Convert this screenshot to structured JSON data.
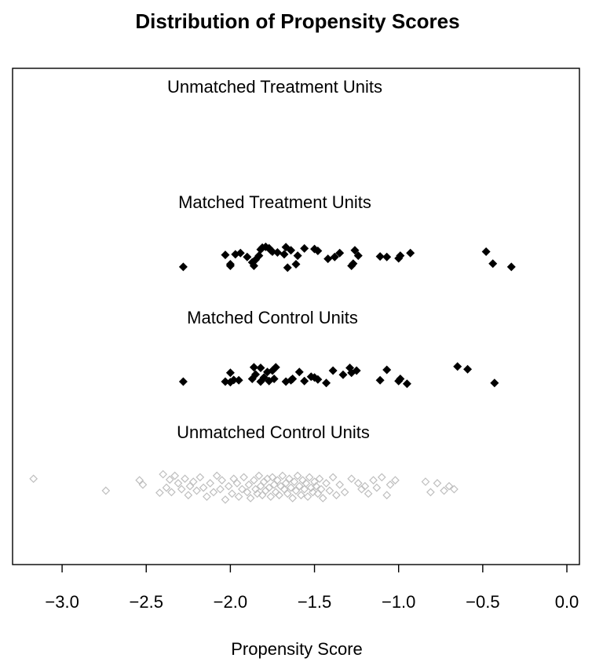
{
  "chart_data": {
    "type": "scatter",
    "title": "Distribution of Propensity Scores",
    "xlabel": "Propensity Score",
    "ylabel": "",
    "xlim": [
      -3.3,
      0.05
    ],
    "x_ticks": [
      -3.0,
      -2.5,
      -2.0,
      -1.5,
      -1.0,
      -0.5,
      0.0
    ],
    "x_tick_labels": [
      "−3.0",
      "−2.5",
      "−2.0",
      "−1.5",
      "−1.0",
      "−0.5",
      "0.0"
    ],
    "grid": false,
    "legend": "none",
    "groups": [
      {
        "name": "Unmatched Treatment Units",
        "marker": "filled-diamond",
        "color": "#000000",
        "points": []
      },
      {
        "name": "Matched Treatment Units",
        "marker": "filled-diamond",
        "color": "#000000",
        "points": [
          [
            -2.28,
            0.18
          ],
          [
            -2.03,
            0.63
          ],
          [
            -2.0,
            0.28
          ],
          [
            -2.0,
            0.22
          ],
          [
            -1.97,
            0.65
          ],
          [
            -1.94,
            0.7
          ],
          [
            -1.9,
            0.55
          ],
          [
            -1.87,
            0.35
          ],
          [
            -1.86,
            0.22
          ],
          [
            -1.85,
            0.45
          ],
          [
            -1.83,
            0.6
          ],
          [
            -1.82,
            0.83
          ],
          [
            -1.81,
            0.9
          ],
          [
            -1.79,
            0.93
          ],
          [
            -1.77,
            0.88
          ],
          [
            -1.76,
            0.8
          ],
          [
            -1.75,
            0.75
          ],
          [
            -1.72,
            0.72
          ],
          [
            -1.68,
            0.65
          ],
          [
            -1.67,
            0.92
          ],
          [
            -1.66,
            0.15
          ],
          [
            -1.64,
            0.8
          ],
          [
            -1.61,
            0.28
          ],
          [
            -1.6,
            0.6
          ],
          [
            -1.56,
            0.87
          ],
          [
            -1.5,
            0.85
          ],
          [
            -1.48,
            0.78
          ],
          [
            -1.42,
            0.48
          ],
          [
            -1.38,
            0.55
          ],
          [
            -1.35,
            0.7
          ],
          [
            -1.28,
            0.22
          ],
          [
            -1.27,
            0.3
          ],
          [
            -1.26,
            0.8
          ],
          [
            -1.24,
            0.6
          ],
          [
            -1.11,
            0.57
          ],
          [
            -1.07,
            0.55
          ],
          [
            -1.0,
            0.5
          ],
          [
            -0.99,
            0.6
          ],
          [
            -0.93,
            0.7
          ],
          [
            -0.48,
            0.75
          ],
          [
            -0.44,
            0.3
          ],
          [
            -0.33,
            0.18
          ]
        ]
      },
      {
        "name": "Matched Control Units",
        "marker": "filled-diamond",
        "color": "#000000",
        "points": [
          [
            -2.28,
            0.2
          ],
          [
            -2.03,
            0.2
          ],
          [
            -2.0,
            0.52
          ],
          [
            -2.0,
            0.18
          ],
          [
            -1.98,
            0.26
          ],
          [
            -1.95,
            0.25
          ],
          [
            -1.87,
            0.3
          ],
          [
            -1.86,
            0.72
          ],
          [
            -1.85,
            0.46
          ],
          [
            -1.82,
            0.7
          ],
          [
            -1.82,
            0.2
          ],
          [
            -1.8,
            0.35
          ],
          [
            -1.78,
            0.55
          ],
          [
            -1.77,
            0.22
          ],
          [
            -1.75,
            0.6
          ],
          [
            -1.74,
            0.3
          ],
          [
            -1.73,
            0.72
          ],
          [
            -1.67,
            0.2
          ],
          [
            -1.64,
            0.25
          ],
          [
            -1.63,
            0.3
          ],
          [
            -1.59,
            0.55
          ],
          [
            -1.56,
            0.22
          ],
          [
            -1.52,
            0.38
          ],
          [
            -1.5,
            0.35
          ],
          [
            -1.48,
            0.28
          ],
          [
            -1.43,
            0.15
          ],
          [
            -1.39,
            0.6
          ],
          [
            -1.33,
            0.45
          ],
          [
            -1.29,
            0.7
          ],
          [
            -1.28,
            0.52
          ],
          [
            -1.25,
            0.6
          ],
          [
            -1.11,
            0.25
          ],
          [
            -1.07,
            0.63
          ],
          [
            -1.0,
            0.22
          ],
          [
            -0.99,
            0.3
          ],
          [
            -0.95,
            0.12
          ],
          [
            -0.65,
            0.75
          ],
          [
            -0.59,
            0.65
          ],
          [
            -0.43,
            0.15
          ]
        ]
      },
      {
        "name": "Unmatched Control Units",
        "marker": "open-diamond",
        "color": "#bebebe",
        "points": [
          [
            -3.17,
            0.85
          ],
          [
            -2.74,
            0.45
          ],
          [
            -2.54,
            0.8
          ],
          [
            -2.52,
            0.65
          ],
          [
            -2.42,
            0.38
          ],
          [
            -2.4,
            1.0
          ],
          [
            -2.38,
            0.55
          ],
          [
            -2.36,
            0.82
          ],
          [
            -2.35,
            0.4
          ],
          [
            -2.33,
            0.95
          ],
          [
            -2.31,
            0.7
          ],
          [
            -2.29,
            0.5
          ],
          [
            -2.27,
            0.85
          ],
          [
            -2.25,
            0.3
          ],
          [
            -2.24,
            0.6
          ],
          [
            -2.22,
            0.75
          ],
          [
            -2.2,
            0.45
          ],
          [
            -2.18,
            0.9
          ],
          [
            -2.16,
            0.55
          ],
          [
            -2.14,
            0.25
          ],
          [
            -2.12,
            0.7
          ],
          [
            -2.1,
            0.4
          ],
          [
            -2.08,
            0.95
          ],
          [
            -2.06,
            0.5
          ],
          [
            -2.05,
            0.8
          ],
          [
            -2.03,
            0.15
          ],
          [
            -2.01,
            0.6
          ],
          [
            -1.99,
            0.35
          ],
          [
            -1.98,
            0.85
          ],
          [
            -1.96,
            0.7
          ],
          [
            -1.95,
            0.25
          ],
          [
            -1.93,
            0.5
          ],
          [
            -1.92,
            0.9
          ],
          [
            -1.9,
            0.4
          ],
          [
            -1.89,
            0.65
          ],
          [
            -1.88,
            0.2
          ],
          [
            -1.86,
            0.8
          ],
          [
            -1.85,
            0.5
          ],
          [
            -1.84,
            0.35
          ],
          [
            -1.83,
            0.95
          ],
          [
            -1.82,
            0.6
          ],
          [
            -1.81,
            0.3
          ],
          [
            -1.8,
            0.75
          ],
          [
            -1.79,
            0.45
          ],
          [
            -1.78,
            0.85
          ],
          [
            -1.77,
            0.55
          ],
          [
            -1.76,
            0.25
          ],
          [
            -1.75,
            0.9
          ],
          [
            -1.74,
            0.65
          ],
          [
            -1.73,
            0.4
          ],
          [
            -1.72,
            0.8
          ],
          [
            -1.71,
            0.3
          ],
          [
            -1.7,
            0.6
          ],
          [
            -1.69,
            0.95
          ],
          [
            -1.68,
            0.5
          ],
          [
            -1.67,
            0.7
          ],
          [
            -1.66,
            0.35
          ],
          [
            -1.65,
            0.85
          ],
          [
            -1.64,
            0.55
          ],
          [
            -1.63,
            0.2
          ],
          [
            -1.62,
            0.75
          ],
          [
            -1.61,
            0.45
          ],
          [
            -1.6,
            0.95
          ],
          [
            -1.59,
            0.6
          ],
          [
            -1.58,
            0.3
          ],
          [
            -1.57,
            0.8
          ],
          [
            -1.56,
            0.5
          ],
          [
            -1.55,
            0.7
          ],
          [
            -1.54,
            0.25
          ],
          [
            -1.53,
            0.9
          ],
          [
            -1.52,
            0.55
          ],
          [
            -1.51,
            0.4
          ],
          [
            -1.5,
            0.75
          ],
          [
            -1.49,
            0.6
          ],
          [
            -1.48,
            0.35
          ],
          [
            -1.47,
            0.85
          ],
          [
            -1.46,
            0.5
          ],
          [
            -1.45,
            0.2
          ],
          [
            -1.43,
            0.7
          ],
          [
            -1.41,
            0.45
          ],
          [
            -1.39,
            0.9
          ],
          [
            -1.37,
            0.3
          ],
          [
            -1.35,
            0.65
          ],
          [
            -1.32,
            0.4
          ],
          [
            -1.28,
            0.85
          ],
          [
            -1.24,
            0.7
          ],
          [
            -1.22,
            0.5
          ],
          [
            -1.2,
            0.6
          ],
          [
            -1.18,
            0.35
          ],
          [
            -1.15,
            0.8
          ],
          [
            -1.13,
            0.55
          ],
          [
            -1.1,
            0.9
          ],
          [
            -1.07,
            0.3
          ],
          [
            -1.05,
            0.65
          ],
          [
            -1.02,
            0.8
          ],
          [
            -0.84,
            0.75
          ],
          [
            -0.81,
            0.4
          ],
          [
            -0.77,
            0.7
          ],
          [
            -0.73,
            0.45
          ],
          [
            -0.7,
            0.6
          ],
          [
            -0.67,
            0.5
          ]
        ]
      }
    ]
  }
}
